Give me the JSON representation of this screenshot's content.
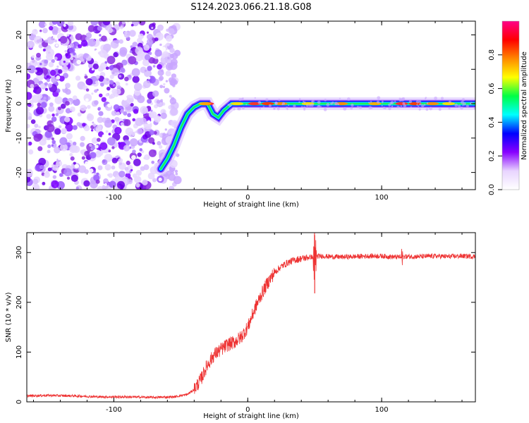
{
  "figure": {
    "title": "S124.2023.066.21.18.G08"
  },
  "chart_data": [
    {
      "type": "heatmap",
      "title": "S124.2023.066.21.18.G08",
      "xlabel": "Height of straight line (km)",
      "ylabel": "Frequency (Hz)",
      "xlim": [
        -165,
        170
      ],
      "ylim": [
        -25,
        24
      ],
      "x_ticks": [
        -100,
        0,
        100
      ],
      "y_ticks": [
        -20,
        -10,
        0,
        10,
        20
      ],
      "grid": false,
      "colorbar": {
        "label": "Normalized spectral amplitude",
        "range": [
          0,
          1
        ],
        "ticks": [
          0.0,
          0.2,
          0.4,
          0.6,
          0.8
        ],
        "tick_labels": [
          "0.0",
          "0.2",
          "0.4",
          "0.6",
          "0.8"
        ],
        "colormap": [
          "#ffffff",
          "#e8d4ff",
          "#8800ff",
          "#0000ff",
          "#00ffff",
          "#00ff44",
          "#ffff00",
          "#ff8800",
          "#ff0000",
          "#ff0088"
        ]
      },
      "noise_region_x": [
        -165,
        -60
      ],
      "ridge_track": [
        {
          "x": -65,
          "y": -19
        },
        {
          "x": -60,
          "y": -16
        },
        {
          "x": -55,
          "y": -12
        },
        {
          "x": -50,
          "y": -7
        },
        {
          "x": -45,
          "y": -3
        },
        {
          "x": -40,
          "y": -1
        },
        {
          "x": -35,
          "y": 0
        },
        {
          "x": -30,
          "y": 0
        },
        {
          "x": -26,
          "y": -3
        },
        {
          "x": -22,
          "y": -4
        },
        {
          "x": -18,
          "y": -2
        },
        {
          "x": -12,
          "y": 0
        },
        {
          "x": 0,
          "y": 0
        },
        {
          "x": 50,
          "y": 0
        },
        {
          "x": 100,
          "y": 0
        },
        {
          "x": 170,
          "y": 0
        }
      ]
    },
    {
      "type": "line",
      "xlabel": "Height of straight line (km)",
      "ylabel": "SNR (10 * v/v)",
      "xlim": [
        -165,
        170
      ],
      "ylim": [
        0,
        340
      ],
      "x_ticks": [
        -100,
        0,
        100
      ],
      "y_ticks": [
        0,
        100,
        200,
        300
      ],
      "grid": false,
      "series": [
        {
          "color": "#ee3333",
          "x": [
            -165,
            -150,
            -130,
            -110,
            -90,
            -70,
            -55,
            -45,
            -40,
            -35,
            -30,
            -25,
            -20,
            -15,
            -10,
            -5,
            0,
            5,
            10,
            15,
            20,
            25,
            30,
            35,
            40,
            45,
            50,
            55,
            60,
            70,
            80,
            90,
            100,
            110,
            120,
            130,
            140,
            150,
            160,
            170
          ],
          "y": [
            12,
            13,
            12,
            10,
            10,
            9,
            10,
            15,
            25,
            45,
            75,
            95,
            105,
            115,
            120,
            130,
            150,
            185,
            215,
            240,
            260,
            272,
            280,
            285,
            288,
            290,
            292,
            293,
            292,
            291,
            292,
            293,
            293,
            291,
            292,
            292,
            293,
            292,
            293,
            292
          ]
        }
      ],
      "annotations": [
        {
          "x": 50,
          "y_min": 218,
          "y_max": 335
        }
      ]
    }
  ]
}
